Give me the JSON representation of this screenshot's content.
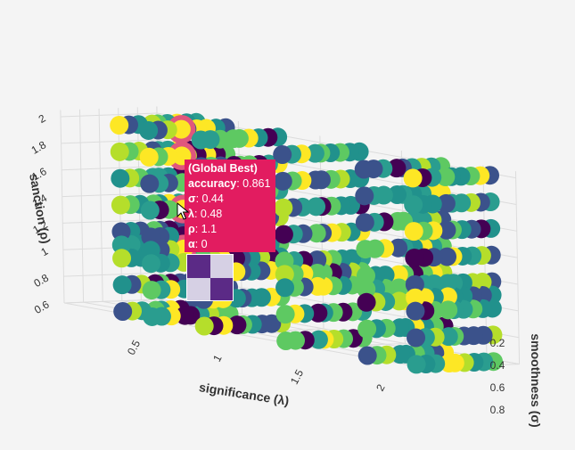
{
  "chart_data": {
    "type": "scatter3d",
    "x_axis": {
      "title": "significance (λ)",
      "ticks": [
        "0.5",
        "1",
        "1.5",
        "2"
      ]
    },
    "y_axis": {
      "title": "smoothness (σ)",
      "ticks": [
        "0.2",
        "0.4",
        "0.6",
        "0.8"
      ]
    },
    "z_axis": {
      "title": "sanction (ρ)",
      "ticks": [
        "0.6",
        "0.8",
        "1",
        "1.2",
        "1.4",
        "1.6",
        "1.8",
        "2"
      ]
    },
    "grid": true,
    "colorscale": "viridis",
    "lambda_values": [
      0.3,
      0.48,
      0.8,
      1.3,
      1.8,
      2.1
    ],
    "rho_values": [
      0.6,
      0.8,
      1.0,
      1.1,
      1.2,
      1.4,
      1.6,
      1.8,
      2.0
    ],
    "sigma_values": [
      0.1,
      0.2,
      0.3,
      0.44,
      0.5,
      0.6,
      0.7,
      0.8,
      0.9
    ],
    "best_highlight_rho": [
      1.1,
      1.4,
      1.8,
      2.0
    ],
    "best_highlight_color": "#e0577d",
    "tooltip": {
      "title": "(Global Best)",
      "rows": [
        {
          "label": "accuracy",
          "value": ": 0.861"
        },
        {
          "label": "σ",
          "value": ": 0.44"
        },
        {
          "label": "λ",
          "value": ": 0.48"
        },
        {
          "label": "ρ",
          "value": ": 1.1"
        },
        {
          "label": "α",
          "value": ": 0"
        }
      ],
      "background": "#e21c60",
      "thumbnail_colors": [
        "#5b2a86",
        "#d6d0e4",
        "#d6d0e4",
        "#5b2a86"
      ]
    }
  }
}
